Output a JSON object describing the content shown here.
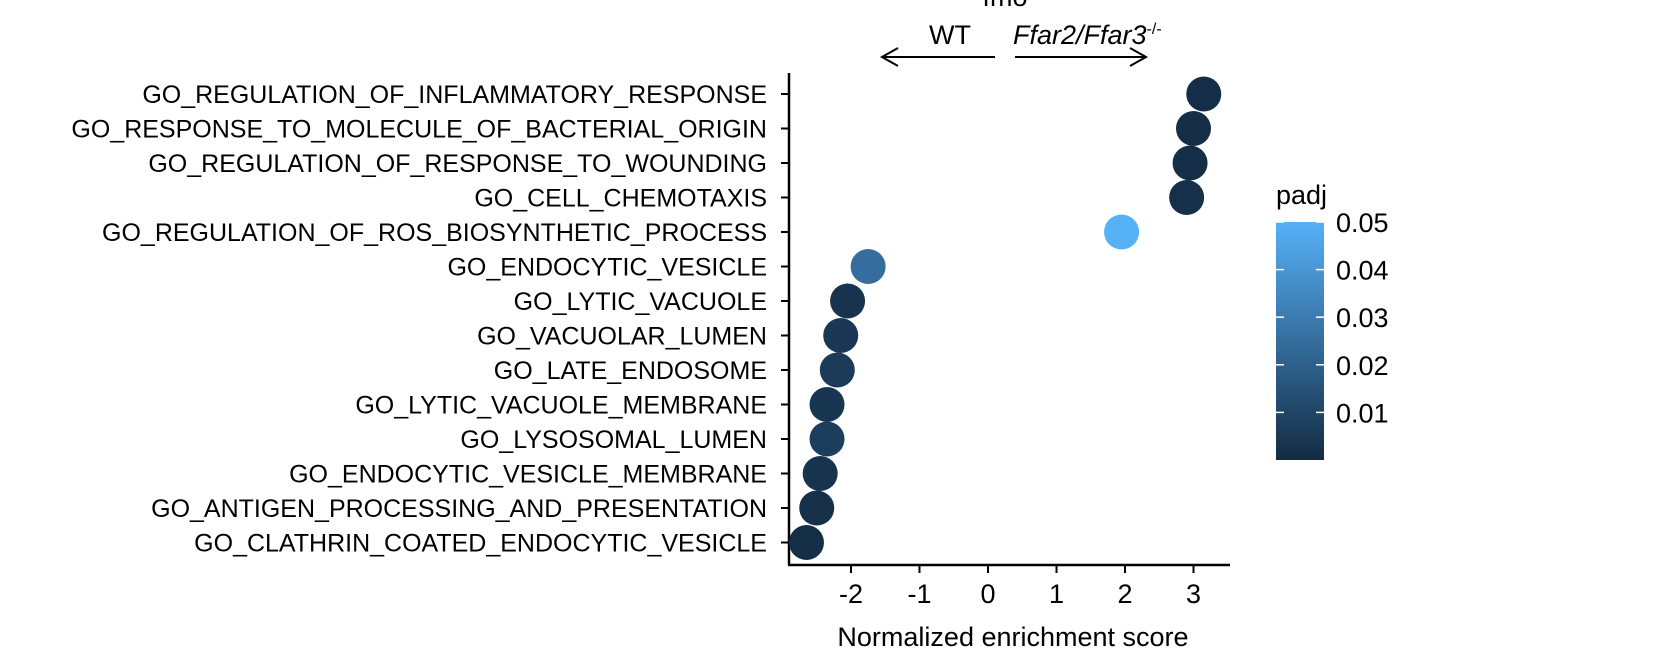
{
  "chart_data": {
    "type": "scatter",
    "title": "fmo",
    "xlabel": "Normalized enrichment score",
    "ylabel": "",
    "xlim": [
      -2.85,
      3.45
    ],
    "xticks": [
      -2,
      -1,
      0,
      1,
      2,
      3
    ],
    "xtick_labels": [
      "-2",
      "-1",
      "0",
      "1",
      "2",
      "3"
    ],
    "direction_labels": {
      "left": "WT",
      "right_italic": "Ffar2/Ffar3",
      "right_superscript": "-/-"
    },
    "terms": [
      {
        "label": "GO_REGULATION_OF_INFLAMMATORY_RESPONSE",
        "nes": 3.15,
        "padj": 0.001
      },
      {
        "label": "GO_RESPONSE_TO_MOLECULE_OF_BACTERIAL_ORIGIN",
        "nes": 3.0,
        "padj": 0.001
      },
      {
        "label": "GO_REGULATION_OF_RESPONSE_TO_WOUNDING",
        "nes": 2.95,
        "padj": 0.001
      },
      {
        "label": "GO_CELL_CHEMOTAXIS",
        "nes": 2.9,
        "padj": 0.002
      },
      {
        "label": "GO_REGULATION_OF_ROS_BIOSYNTHETIC_PROCESS",
        "nes": 1.95,
        "padj": 0.05
      },
      {
        "label": "GO_ENDOCYTIC_VESICLE",
        "nes": -1.75,
        "padj": 0.025
      },
      {
        "label": "GO_LYTIC_VACUOLE",
        "nes": -2.05,
        "padj": 0.003
      },
      {
        "label": "GO_VACUOLAR_LUMEN",
        "nes": -2.15,
        "padj": 0.005
      },
      {
        "label": "GO_LATE_ENDOSOME",
        "nes": -2.2,
        "padj": 0.006
      },
      {
        "label": "GO_LYTIC_VACUOLE_MEMBRANE",
        "nes": -2.35,
        "padj": 0.004
      },
      {
        "label": "GO_LYSOSOMAL_LUMEN",
        "nes": -2.35,
        "padj": 0.007
      },
      {
        "label": "GO_ENDOCYTIC_VESICLE_MEMBRANE",
        "nes": -2.45,
        "padj": 0.003
      },
      {
        "label": "GO_ANTIGEN_PROCESSING_AND_PRESENTATION",
        "nes": -2.5,
        "padj": 0.002
      },
      {
        "label": "GO_CLATHRIN_COATED_ENDOCYTIC_VESICLE",
        "nes": -2.65,
        "padj": 0.001
      }
    ],
    "legend": {
      "title": "padj",
      "placement": "right",
      "ticks": [
        0.05,
        0.04,
        0.03,
        0.02,
        0.01
      ],
      "tick_labels": [
        "0.05",
        "0.04",
        "0.03",
        "0.02",
        "0.01"
      ],
      "range": [
        0.0,
        0.05
      ],
      "color_low": "#132B43",
      "color_high": "#56B1F7"
    },
    "grid": false
  }
}
